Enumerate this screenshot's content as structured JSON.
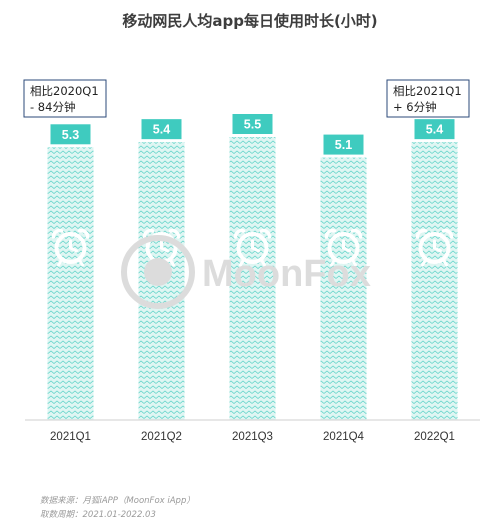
{
  "chart_data": {
    "type": "bar",
    "title": "移动网民人均app每日使用时长(小时)",
    "categories": [
      "2021Q1",
      "2021Q2",
      "2021Q3",
      "2021Q4",
      "2022Q1"
    ],
    "values": [
      5.3,
      5.4,
      5.5,
      5.1,
      5.4
    ],
    "value_labels": [
      "5.3",
      "5.4",
      "5.5",
      "5.1",
      "5.4"
    ],
    "xlabel": "",
    "ylabel": "",
    "ylim": [
      0,
      5.5
    ],
    "grid": false,
    "legend": "none",
    "bar_color": "#3fcbbf",
    "bar_fill_color": "#c9efeb",
    "annotations": [
      {
        "lines": [
          "相比2020Q1",
          "- 84分钟"
        ]
      },
      {
        "lines": [
          "相比2021Q1",
          "+ 6分钟"
        ]
      }
    ]
  },
  "watermark": {
    "text": "MoonFox",
    "icon": "alarm-clock-icon"
  },
  "bar_icon": "alarm-clock-icon",
  "source": {
    "line1": "数据来源：月狐iAPP（MoonFox iApp）",
    "line2": "取数周期：2021.01-2022.03"
  }
}
